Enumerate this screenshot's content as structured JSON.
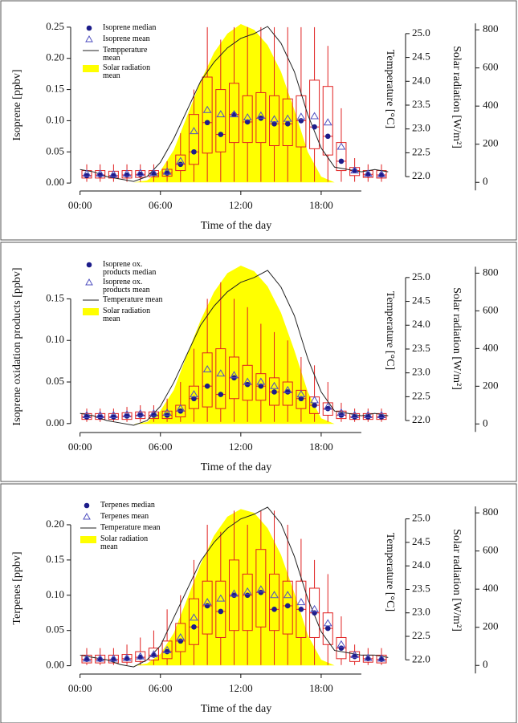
{
  "chart_data": [
    {
      "type": "box",
      "ylabel": "Isoprene [ppbv]",
      "xlabel": "Time of the day",
      "y2label": "Temperature [°C]",
      "y3label": "Solar radiation [W/m²]",
      "x": [
        0.5,
        1.5,
        2.5,
        3.5,
        4.5,
        5.5,
        6.5,
        7.5,
        8.5,
        9.5,
        10.5,
        11.5,
        12.5,
        13.5,
        14.5,
        15.5,
        16.5,
        17.5,
        18.5,
        19.5,
        20.5,
        21.5,
        22.5
      ],
      "xlim": [
        -0.7,
        24
      ],
      "xticks": [
        {
          "value": 0,
          "label": "00:00"
        },
        {
          "value": 6,
          "label": "06:00"
        },
        {
          "value": 12,
          "label": "12:00"
        },
        {
          "value": 18,
          "label": "18:00"
        }
      ],
      "ylim": [
        -0.005,
        0.255
      ],
      "yticks": [
        {
          "value": 0,
          "label": "0.00"
        },
        0.05,
        {
          "value": 0.1,
          "label": "0.10"
        },
        0.15,
        {
          "value": 0.2,
          "label": "0.20"
        },
        0.25
      ],
      "y2lim": [
        21.8,
        25.2
      ],
      "y2ticks": [
        {
          "value": 22,
          "label": "22.0"
        },
        22.5,
        {
          "value": 23,
          "label": "23.0"
        },
        23.5,
        {
          "value": 24,
          "label": "24.0"
        },
        24.5,
        {
          "value": 25,
          "label": "25.0"
        }
      ],
      "y3lim": [
        -20,
        830
      ],
      "y3ticks": [
        0,
        200,
        400,
        600,
        800
      ],
      "median": {
        "name": "Isoprene median",
        "color": "#1c1c8a",
        "values": [
          0.012,
          0.013,
          0.012,
          0.013,
          0.014,
          0.015,
          0.016,
          0.03,
          0.05,
          0.097,
          0.078,
          0.11,
          0.098,
          0.104,
          0.095,
          0.095,
          0.1,
          0.09,
          0.075,
          0.035,
          0.02,
          0.014,
          0.013
        ]
      },
      "mean": {
        "name": "Isoprene mean",
        "color": "#5050c0",
        "values": [
          0.015,
          0.015,
          0.014,
          0.015,
          0.016,
          0.016,
          0.018,
          0.035,
          0.083,
          0.117,
          0.11,
          0.11,
          0.105,
          0.108,
          0.102,
          0.103,
          0.106,
          0.107,
          0.097,
          0.058,
          0.02,
          0.015,
          0.014
        ]
      },
      "box": {
        "color": "#e02020",
        "q1": [
          0.008,
          0.008,
          0.008,
          0.008,
          0.009,
          0.01,
          0.011,
          0.02,
          0.03,
          0.048,
          0.05,
          0.065,
          0.065,
          0.065,
          0.06,
          0.06,
          0.058,
          0.055,
          0.045,
          0.02,
          0.012,
          0.009,
          0.008
        ],
        "q3": [
          0.02,
          0.02,
          0.019,
          0.02,
          0.02,
          0.02,
          0.022,
          0.045,
          0.11,
          0.17,
          0.15,
          0.16,
          0.14,
          0.145,
          0.14,
          0.135,
          0.14,
          0.165,
          0.155,
          0.065,
          0.025,
          0.02,
          0.02
        ],
        "whisker_low": [
          0.002,
          0.002,
          0.002,
          0.002,
          0.002,
          0.002,
          0.002,
          0.002,
          0.002,
          0.002,
          0.002,
          0.002,
          0.002,
          0.002,
          0.002,
          0.002,
          0.002,
          0.002,
          0.002,
          0.002,
          0.002,
          0.002,
          0.002
        ],
        "whisker_high": [
          0.03,
          0.03,
          0.03,
          0.03,
          0.03,
          0.03,
          0.035,
          0.08,
          0.15,
          0.25,
          0.23,
          0.25,
          0.25,
          0.25,
          0.25,
          0.25,
          0.25,
          0.25,
          0.22,
          0.12,
          0.04,
          0.03,
          0.03
        ]
      },
      "temperature": {
        "name": "Tempperature mean",
        "color": "#222222",
        "axis": "y2",
        "x": [
          0,
          1,
          2,
          3,
          4,
          5,
          6,
          7,
          8,
          9,
          10,
          11,
          12,
          13,
          14,
          15,
          16,
          17,
          18,
          19,
          20,
          21,
          22,
          23
        ],
        "values": [
          22.15,
          22.1,
          22.0,
          21.95,
          21.9,
          22.0,
          22.3,
          22.8,
          23.4,
          24.0,
          24.4,
          24.7,
          24.9,
          25.0,
          25.15,
          24.8,
          24.2,
          23.3,
          22.6,
          22.2,
          22.15,
          22.1,
          22.15,
          22.1
        ]
      },
      "solar": {
        "name": "Solar radiation mean",
        "color": "#ffff00",
        "axis": "y3",
        "x": [
          0,
          1,
          2,
          3,
          4,
          5,
          6,
          7,
          8,
          9,
          10,
          11,
          12,
          13,
          14,
          15,
          16,
          17,
          18,
          19,
          20,
          21,
          22,
          23
        ],
        "values": [
          0,
          0,
          0,
          0,
          0,
          10,
          60,
          170,
          350,
          530,
          680,
          780,
          830,
          800,
          720,
          580,
          380,
          160,
          30,
          0,
          0,
          0,
          0,
          0
        ]
      }
    },
    {
      "type": "box",
      "ylabel": "Isoprene oxidation products [ppbv]",
      "xlabel": "Time of the day",
      "y2label": "Temperature [°C]",
      "y3label": "Solar radiation [W/m²]",
      "x": [
        0.5,
        1.5,
        2.5,
        3.5,
        4.5,
        5.5,
        6.5,
        7.5,
        8.5,
        9.5,
        10.5,
        11.5,
        12.5,
        13.5,
        14.5,
        15.5,
        16.5,
        17.5,
        18.5,
        19.5,
        20.5,
        21.5,
        22.5
      ],
      "xlim": [
        -0.7,
        24
      ],
      "xticks": [
        {
          "value": 0,
          "label": "00:00"
        },
        {
          "value": 6,
          "label": "06:00"
        },
        {
          "value": 12,
          "label": "12:00"
        },
        {
          "value": 18,
          "label": "18:00"
        }
      ],
      "ylim": [
        -0.005,
        0.19
      ],
      "yticks": [
        {
          "value": 0,
          "label": "0.00"
        },
        0.05,
        {
          "value": 0.1,
          "label": "0.10"
        },
        0.15
      ],
      "y2lim": [
        21.85,
        25.25
      ],
      "y2ticks": [
        {
          "value": 22,
          "label": "22.0"
        },
        22.5,
        {
          "value": 23,
          "label": "23.0"
        },
        23.5,
        {
          "value": 24,
          "label": "24.0"
        },
        24.5,
        {
          "value": 25,
          "label": "25.0"
        }
      ],
      "y3lim": [
        -20,
        840
      ],
      "y3ticks": [
        0,
        200,
        400,
        600,
        800
      ],
      "median": {
        "name": "Isoprene ox. products median",
        "color": "#1c1c8a",
        "values": [
          0.008,
          0.008,
          0.008,
          0.009,
          0.01,
          0.01,
          0.01,
          0.015,
          0.03,
          0.045,
          0.035,
          0.055,
          0.047,
          0.045,
          0.038,
          0.038,
          0.03,
          0.022,
          0.018,
          0.01,
          0.008,
          0.008,
          0.008
        ]
      },
      "mean": {
        "name": "Isoprene ox. products mean",
        "color": "#5050c0",
        "values": [
          0.01,
          0.01,
          0.01,
          0.011,
          0.012,
          0.012,
          0.013,
          0.018,
          0.035,
          0.065,
          0.06,
          0.058,
          0.05,
          0.05,
          0.045,
          0.04,
          0.035,
          0.028,
          0.02,
          0.013,
          0.01,
          0.01,
          0.01
        ]
      },
      "box": {
        "color": "#e02020",
        "q1": [
          0.005,
          0.005,
          0.005,
          0.005,
          0.006,
          0.006,
          0.006,
          0.008,
          0.018,
          0.02,
          0.018,
          0.03,
          0.028,
          0.028,
          0.022,
          0.022,
          0.018,
          0.012,
          0.01,
          0.006,
          0.005,
          0.005,
          0.005
        ],
        "q3": [
          0.012,
          0.012,
          0.012,
          0.013,
          0.014,
          0.014,
          0.015,
          0.022,
          0.045,
          0.085,
          0.09,
          0.08,
          0.07,
          0.06,
          0.055,
          0.05,
          0.04,
          0.032,
          0.025,
          0.015,
          0.012,
          0.012,
          0.012
        ],
        "whisker_low": [
          0.002,
          0.002,
          0.002,
          0.002,
          0.002,
          0.002,
          0.002,
          0.002,
          0.002,
          0.002,
          0.002,
          0.002,
          0.002,
          0.002,
          0.002,
          0.002,
          0.002,
          0.002,
          0.002,
          0.002,
          0.002,
          0.002,
          0.002
        ],
        "whisker_high": [
          0.018,
          0.018,
          0.018,
          0.02,
          0.022,
          0.022,
          0.03,
          0.05,
          0.09,
          0.15,
          0.17,
          0.15,
          0.14,
          0.12,
          0.11,
          0.1,
          0.08,
          0.07,
          0.05,
          0.025,
          0.018,
          0.018,
          0.018
        ]
      },
      "temperature": {
        "name": "Temperature mean",
        "color": "#222222",
        "axis": "y2",
        "x": [
          0,
          1,
          2,
          3,
          4,
          5,
          6,
          7,
          8,
          9,
          10,
          11,
          12,
          13,
          14,
          15,
          16,
          17,
          18,
          19,
          20,
          21,
          22,
          23
        ],
        "values": [
          22.15,
          22.1,
          22.0,
          21.95,
          21.9,
          22.0,
          22.3,
          22.8,
          23.4,
          24.0,
          24.4,
          24.7,
          24.9,
          25.0,
          25.15,
          24.8,
          24.2,
          23.3,
          22.6,
          22.2,
          22.15,
          22.1,
          22.15,
          22.1
        ]
      },
      "solar": {
        "name": "Solar radiation mean",
        "color": "#ffff00",
        "axis": "y3",
        "x": [
          0,
          1,
          2,
          3,
          4,
          5,
          6,
          7,
          8,
          9,
          10,
          11,
          12,
          13,
          14,
          15,
          16,
          17,
          18,
          19,
          20,
          21,
          22,
          23
        ],
        "values": [
          0,
          0,
          0,
          0,
          0,
          10,
          70,
          180,
          370,
          550,
          700,
          800,
          840,
          810,
          730,
          590,
          390,
          170,
          30,
          0,
          0,
          0,
          0,
          0
        ]
      }
    },
    {
      "type": "box",
      "ylabel": "Terpenes [ppbv]",
      "xlabel": "Time of the day",
      "y2label": "Temperature [°C]",
      "y3label": "Solar radiation [W/m²]",
      "x": [
        0.5,
        1.5,
        2.5,
        3.5,
        4.5,
        5.5,
        6.5,
        7.5,
        8.5,
        9.5,
        10.5,
        11.5,
        12.5,
        13.5,
        14.5,
        15.5,
        16.5,
        17.5,
        18.5,
        19.5,
        20.5,
        21.5,
        22.5
      ],
      "xlim": [
        -0.7,
        24
      ],
      "xticks": [
        {
          "value": 0,
          "label": "00:00"
        },
        {
          "value": 6,
          "label": "06:00"
        },
        {
          "value": 12,
          "label": "12:00"
        },
        {
          "value": 18,
          "label": "18:00"
        }
      ],
      "ylim": [
        -0.005,
        0.225
      ],
      "yticks": [
        {
          "value": 0,
          "label": "0.00"
        },
        0.05,
        {
          "value": 0.1,
          "label": "0.10"
        },
        0.15,
        {
          "value": 0.2,
          "label": "0.20"
        }
      ],
      "y2lim": [
        21.8,
        25.25
      ],
      "y2ticks": [
        {
          "value": 22,
          "label": "22.0"
        },
        22.5,
        {
          "value": 23,
          "label": "23.0"
        },
        23.5,
        {
          "value": 24,
          "label": "24.0"
        },
        24.5,
        {
          "value": 25,
          "label": "25.0"
        }
      ],
      "y3lim": [
        -20,
        830
      ],
      "y3ticks": [
        0,
        200,
        400,
        600,
        800
      ],
      "median": {
        "name": "Terpenes median",
        "color": "#1c1c8a",
        "values": [
          0.009,
          0.009,
          0.009,
          0.01,
          0.012,
          0.015,
          0.02,
          0.035,
          0.055,
          0.085,
          0.077,
          0.1,
          0.1,
          0.104,
          0.08,
          0.085,
          0.08,
          0.075,
          0.053,
          0.025,
          0.013,
          0.01,
          0.009
        ]
      },
      "mean": {
        "name": "Terpenes mean",
        "color": "#5050c0",
        "values": [
          0.01,
          0.01,
          0.01,
          0.011,
          0.013,
          0.016,
          0.022,
          0.04,
          0.068,
          0.09,
          0.095,
          0.102,
          0.105,
          0.108,
          0.1,
          0.1,
          0.09,
          0.08,
          0.06,
          0.03,
          0.015,
          0.011,
          0.01
        ]
      },
      "box": {
        "color": "#e02020",
        "q1": [
          0.004,
          0.004,
          0.004,
          0.005,
          0.006,
          0.008,
          0.01,
          0.02,
          0.03,
          0.045,
          0.04,
          0.05,
          0.05,
          0.055,
          0.05,
          0.045,
          0.04,
          0.04,
          0.03,
          0.01,
          0.006,
          0.005,
          0.004
        ],
        "q3": [
          0.015,
          0.015,
          0.015,
          0.016,
          0.02,
          0.025,
          0.035,
          0.06,
          0.095,
          0.12,
          0.12,
          0.15,
          0.13,
          0.165,
          0.13,
          0.12,
          0.12,
          0.11,
          0.075,
          0.04,
          0.02,
          0.015,
          0.015
        ],
        "whisker_low": [
          0.001,
          0.001,
          0.001,
          0.001,
          0.001,
          0.001,
          0.001,
          0.001,
          0.001,
          0.001,
          0.001,
          0.001,
          0.001,
          0.001,
          0.001,
          0.001,
          0.001,
          0.001,
          0.001,
          0.001,
          0.001,
          0.001,
          0.001
        ],
        "whisker_high": [
          0.025,
          0.025,
          0.025,
          0.03,
          0.04,
          0.05,
          0.08,
          0.1,
          0.15,
          0.2,
          0.19,
          0.22,
          0.2,
          0.22,
          0.22,
          0.2,
          0.18,
          0.15,
          0.13,
          0.07,
          0.03,
          0.025,
          0.025
        ]
      },
      "temperature": {
        "name": "Temperature mean",
        "color": "#222222",
        "axis": "y2",
        "x": [
          0,
          1,
          2,
          3,
          4,
          5,
          6,
          7,
          8,
          9,
          10,
          11,
          12,
          13,
          14,
          15,
          16,
          17,
          18,
          19,
          20,
          21,
          22,
          23
        ],
        "values": [
          22.1,
          22.05,
          22.0,
          21.9,
          21.85,
          22.0,
          22.3,
          22.9,
          23.5,
          24.1,
          24.5,
          24.8,
          25.0,
          25.1,
          25.25,
          24.9,
          24.2,
          23.3,
          22.6,
          22.2,
          22.15,
          22.1,
          22.1,
          22.05
        ]
      },
      "solar": {
        "name": "Solar radiation mean",
        "color": "#ffff00",
        "axis": "y3",
        "x": [
          0,
          1,
          2,
          3,
          4,
          5,
          6,
          7,
          8,
          9,
          10,
          11,
          12,
          13,
          14,
          15,
          16,
          17,
          18,
          19,
          20,
          21,
          22,
          23
        ],
        "values": [
          0,
          0,
          0,
          0,
          0,
          10,
          60,
          170,
          350,
          530,
          680,
          780,
          820,
          800,
          720,
          580,
          380,
          160,
          30,
          0,
          0,
          0,
          0,
          0
        ]
      }
    }
  ]
}
